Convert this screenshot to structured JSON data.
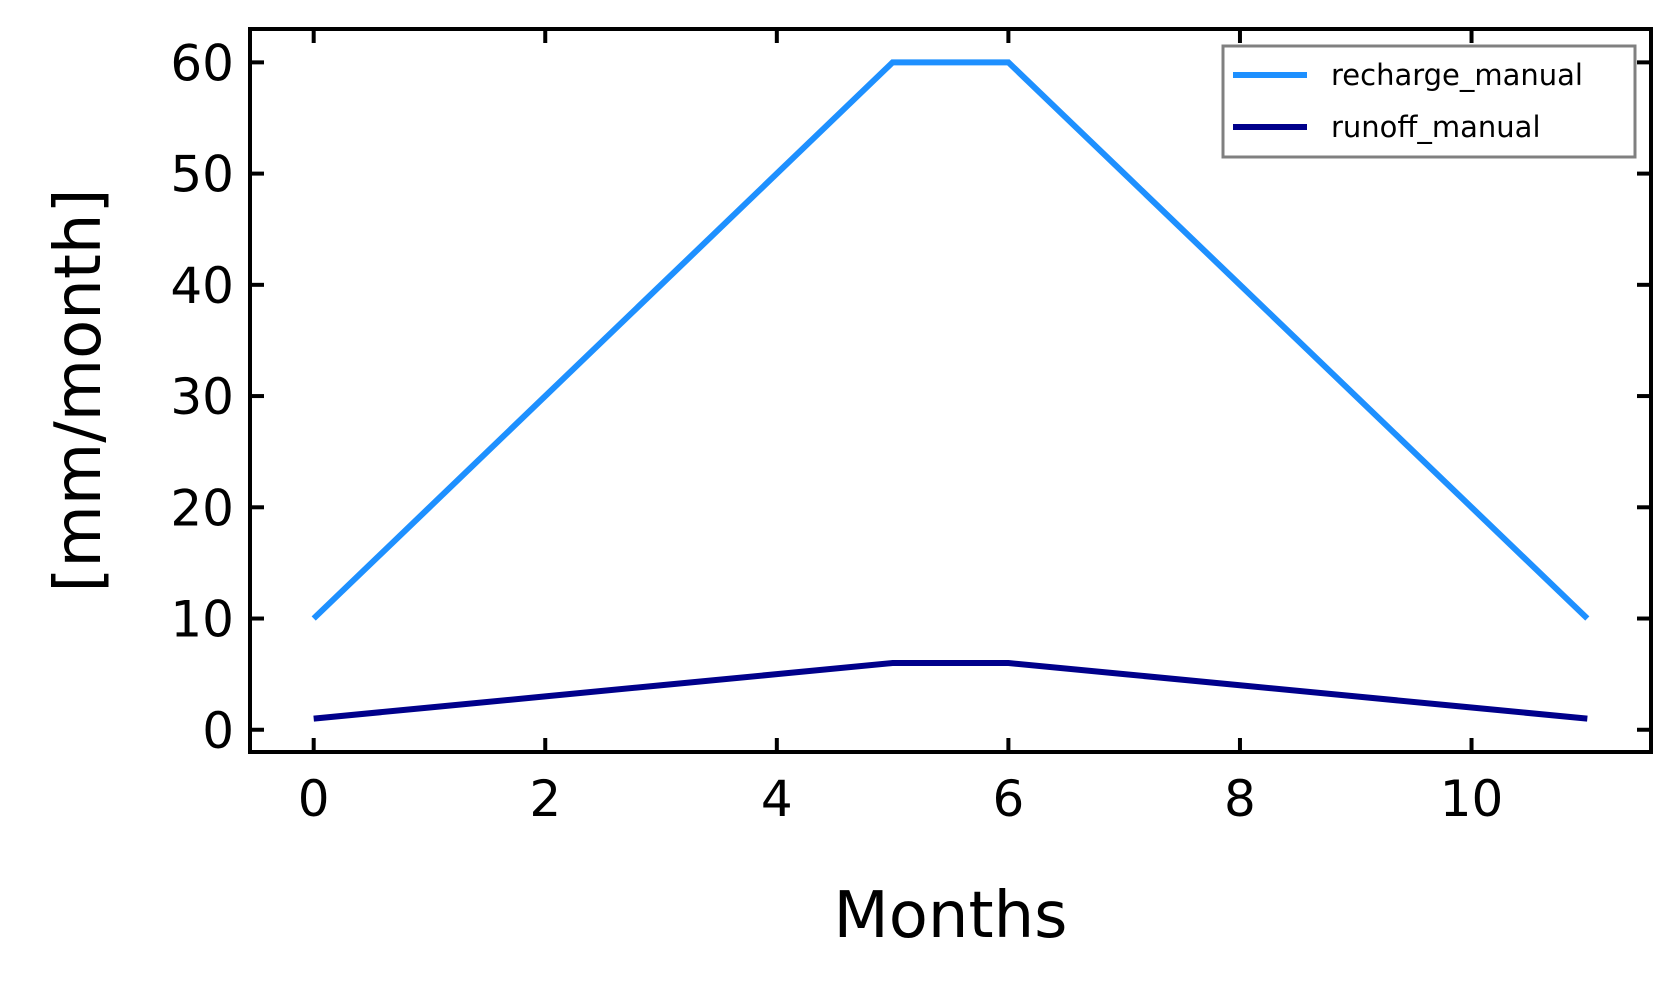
{
  "chart_data": {
    "type": "line",
    "title": "",
    "xlabel": "Months",
    "ylabel": "[mm/month]",
    "x": [
      0,
      1,
      2,
      3,
      4,
      5,
      6,
      7,
      8,
      9,
      10,
      11
    ],
    "xlim": [
      -0.55,
      11.55
    ],
    "ylim": [
      -2,
      63
    ],
    "xticks": [
      0,
      2,
      4,
      6,
      8,
      10
    ],
    "yticks": [
      0,
      10,
      20,
      30,
      40,
      50,
      60
    ],
    "grid": false,
    "legend_position": "top-right",
    "series": [
      {
        "name": "recharge_manual",
        "color": "#1E90FF",
        "values": [
          10,
          20,
          30,
          40,
          50,
          60,
          60,
          50,
          40,
          30,
          20,
          10
        ]
      },
      {
        "name": "runoff_manual",
        "color": "#00008B",
        "values": [
          1,
          2,
          3,
          4,
          5,
          6,
          6,
          5,
          4,
          3,
          2,
          1
        ]
      }
    ]
  }
}
